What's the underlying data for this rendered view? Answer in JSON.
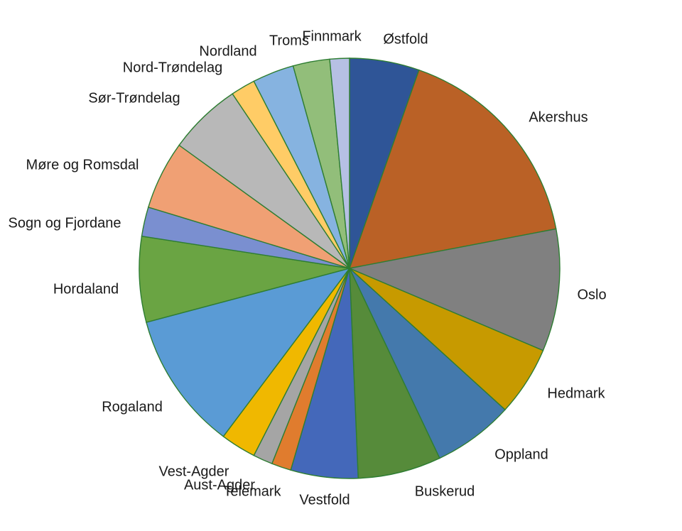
{
  "chart_data": {
    "type": "pie",
    "categories": [
      "Østfold",
      "Akershus",
      "Oslo",
      "Hedmark",
      "Oppland",
      "Buskerud",
      "Vestfold",
      "Telemark",
      "Aust-Agder",
      "Vest-Agder",
      "Rogaland",
      "Hordaland",
      "Sogn og Fjordane",
      "Møre og Romsdal",
      "Sør-Trøndelag",
      "Nord-Trøndelag",
      "Nordland",
      "Troms",
      "Finnmark"
    ],
    "values": [
      5.7,
      17.7,
      10.0,
      5.7,
      6.6,
      6.8,
      5.5,
      1.6,
      1.6,
      2.9,
      11.3,
      7.0,
      2.4,
      5.6,
      6.0,
      2.0,
      3.4,
      3.0,
      1.6
    ],
    "colors": [
      "#2F5597",
      "#BA6126",
      "#808080",
      "#C79A00",
      "#4479AC",
      "#568B3A",
      "#4468BA",
      "#E07C2E",
      "#A5A5A5",
      "#F0B800",
      "#5A9BD5",
      "#6AA443",
      "#7A8FD0",
      "#F0A074",
      "#B8B8B8",
      "#FFCC66",
      "#86B3E0",
      "#92BE7A",
      "#B6C0E4"
    ],
    "slice_border_color": "#2e7d32"
  }
}
